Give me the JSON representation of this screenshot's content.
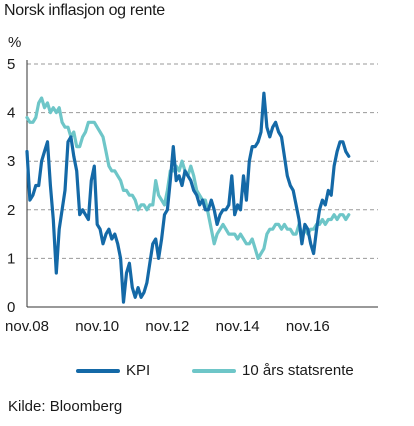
{
  "chart_data": {
    "type": "line",
    "title": "Norsk inflasjon og rente",
    "ylabel": "%",
    "ylim": [
      0,
      5
    ],
    "yticks": [
      "0",
      "1",
      "2",
      "3",
      "4",
      "5"
    ],
    "xlim": [
      "2008-11",
      "2018-11"
    ],
    "xticks": [
      "nov.08",
      "nov.10",
      "nov.12",
      "nov.14",
      "nov.16"
    ],
    "grid": "horizontal dashed",
    "legend_position": "bottom",
    "source": "Kilde: Bloomberg",
    "series": [
      {
        "name": "KPI",
        "color": "#1469A7",
        "points": [
          [
            "2008-11",
            3.2
          ],
          [
            "2008-12",
            2.2
          ],
          [
            "2009-01",
            2.3
          ],
          [
            "2009-02",
            2.5
          ],
          [
            "2009-03",
            2.5
          ],
          [
            "2009-04",
            3.0
          ],
          [
            "2009-05",
            3.2
          ],
          [
            "2009-06",
            3.4
          ],
          [
            "2009-07",
            2.5
          ],
          [
            "2009-08",
            1.8
          ],
          [
            "2009-09",
            0.7
          ],
          [
            "2009-10",
            1.6
          ],
          [
            "2009-11",
            2.0
          ],
          [
            "2009-12",
            2.4
          ],
          [
            "2010-01",
            3.4
          ],
          [
            "2010-02",
            3.5
          ],
          [
            "2010-03",
            3.1
          ],
          [
            "2010-04",
            2.8
          ],
          [
            "2010-05",
            1.9
          ],
          [
            "2010-06",
            2.0
          ],
          [
            "2010-07",
            1.9
          ],
          [
            "2010-08",
            1.8
          ],
          [
            "2010-09",
            2.6
          ],
          [
            "2010-10",
            2.9
          ],
          [
            "2010-11",
            1.7
          ],
          [
            "2010-12",
            1.6
          ],
          [
            "2011-01",
            1.3
          ],
          [
            "2011-02",
            1.5
          ],
          [
            "2011-03",
            1.6
          ],
          [
            "2011-04",
            1.4
          ],
          [
            "2011-05",
            1.5
          ],
          [
            "2011-06",
            1.3
          ],
          [
            "2011-07",
            1.0
          ],
          [
            "2011-08",
            0.1
          ],
          [
            "2011-09",
            0.7
          ],
          [
            "2011-10",
            0.9
          ],
          [
            "2011-11",
            0.4
          ],
          [
            "2011-12",
            0.2
          ],
          [
            "2012-01",
            0.4
          ],
          [
            "2012-02",
            0.2
          ],
          [
            "2012-03",
            0.3
          ],
          [
            "2012-04",
            0.5
          ],
          [
            "2012-05",
            0.9
          ],
          [
            "2012-06",
            1.3
          ],
          [
            "2012-07",
            1.4
          ],
          [
            "2012-08",
            1.0
          ],
          [
            "2012-09",
            1.4
          ],
          [
            "2012-10",
            1.9
          ],
          [
            "2012-11",
            2.0
          ],
          [
            "2012-12",
            2.6
          ],
          [
            "2013-01",
            3.3
          ],
          [
            "2013-02",
            2.6
          ],
          [
            "2013-03",
            2.7
          ],
          [
            "2013-04",
            2.5
          ],
          [
            "2013-05",
            2.8
          ],
          [
            "2013-06",
            2.7
          ],
          [
            "2013-07",
            2.6
          ],
          [
            "2013-08",
            2.4
          ],
          [
            "2013-09",
            2.3
          ],
          [
            "2013-10",
            2.1
          ],
          [
            "2013-11",
            2.2
          ],
          [
            "2013-12",
            2.0
          ],
          [
            "2014-01",
            2.0
          ],
          [
            "2014-02",
            2.2
          ],
          [
            "2014-03",
            2.0
          ],
          [
            "2014-04",
            1.7
          ],
          [
            "2014-05",
            1.9
          ],
          [
            "2014-06",
            2.0
          ],
          [
            "2014-07",
            2.0
          ],
          [
            "2014-08",
            2.1
          ],
          [
            "2014-09",
            2.7
          ],
          [
            "2014-10",
            1.9
          ],
          [
            "2014-11",
            2.1
          ],
          [
            "2014-12",
            2.0
          ],
          [
            "2015-01",
            2.7
          ],
          [
            "2015-02",
            2.2
          ],
          [
            "2015-03",
            3.0
          ],
          [
            "2015-04",
            3.3
          ],
          [
            "2015-05",
            3.3
          ],
          [
            "2015-06",
            3.4
          ],
          [
            "2015-07",
            3.6
          ],
          [
            "2015-08",
            4.4
          ],
          [
            "2015-09",
            3.7
          ],
          [
            "2015-10",
            3.5
          ],
          [
            "2015-11",
            3.7
          ],
          [
            "2015-12",
            3.8
          ],
          [
            "2016-01",
            3.6
          ],
          [
            "2016-02",
            3.5
          ],
          [
            "2016-03",
            3.1
          ],
          [
            "2016-04",
            2.7
          ],
          [
            "2016-05",
            2.5
          ],
          [
            "2016-06",
            2.4
          ],
          [
            "2016-07",
            2.1
          ],
          [
            "2016-08",
            1.8
          ],
          [
            "2016-09",
            1.3
          ],
          [
            "2016-10",
            1.7
          ],
          [
            "2016-11",
            1.6
          ],
          [
            "2016-12",
            1.3
          ],
          [
            "2017-01",
            1.1
          ],
          [
            "2017-02",
            1.6
          ],
          [
            "2017-03",
            2.0
          ],
          [
            "2017-04",
            2.2
          ],
          [
            "2017-05",
            2.1
          ],
          [
            "2017-06",
            2.4
          ],
          [
            "2017-07",
            2.3
          ],
          [
            "2017-08",
            2.9
          ],
          [
            "2017-09",
            3.2
          ],
          [
            "2017-10",
            3.4
          ],
          [
            "2017-11",
            3.4
          ],
          [
            "2017-12",
            3.2
          ],
          [
            "2018-01",
            3.1
          ]
        ]
      },
      {
        "name": "10 års statsrente",
        "color": "#6EC6C8",
        "points": [
          [
            "2008-11",
            3.9
          ],
          [
            "2008-12",
            3.8
          ],
          [
            "2009-01",
            3.8
          ],
          [
            "2009-02",
            3.9
          ],
          [
            "2009-03",
            4.2
          ],
          [
            "2009-04",
            4.3
          ],
          [
            "2009-05",
            4.1
          ],
          [
            "2009-06",
            4.2
          ],
          [
            "2009-07",
            4.0
          ],
          [
            "2009-08",
            4.1
          ],
          [
            "2009-09",
            4.0
          ],
          [
            "2009-10",
            4.1
          ],
          [
            "2009-11",
            3.8
          ],
          [
            "2009-12",
            3.7
          ],
          [
            "2010-01",
            3.7
          ],
          [
            "2010-02",
            3.5
          ],
          [
            "2010-03",
            3.6
          ],
          [
            "2010-04",
            3.3
          ],
          [
            "2010-05",
            3.3
          ],
          [
            "2010-06",
            3.5
          ],
          [
            "2010-07",
            3.6
          ],
          [
            "2010-08",
            3.8
          ],
          [
            "2010-09",
            3.8
          ],
          [
            "2010-10",
            3.8
          ],
          [
            "2010-11",
            3.7
          ],
          [
            "2010-12",
            3.6
          ],
          [
            "2011-01",
            3.5
          ],
          [
            "2011-02",
            3.2
          ],
          [
            "2011-03",
            2.9
          ],
          [
            "2011-04",
            2.8
          ],
          [
            "2011-05",
            2.8
          ],
          [
            "2011-06",
            2.7
          ],
          [
            "2011-07",
            2.6
          ],
          [
            "2011-08",
            2.4
          ],
          [
            "2011-09",
            2.4
          ],
          [
            "2011-10",
            2.3
          ],
          [
            "2011-11",
            2.3
          ],
          [
            "2011-12",
            2.2
          ],
          [
            "2012-01",
            2.0
          ],
          [
            "2012-02",
            2.1
          ],
          [
            "2012-03",
            2.1
          ],
          [
            "2012-04",
            2.0
          ],
          [
            "2012-05",
            2.1
          ],
          [
            "2012-06",
            2.1
          ],
          [
            "2012-07",
            2.6
          ],
          [
            "2012-08",
            2.3
          ],
          [
            "2012-09",
            2.2
          ],
          [
            "2012-10",
            2.1
          ],
          [
            "2012-11",
            2.4
          ],
          [
            "2012-12",
            2.8
          ],
          [
            "2013-01",
            2.8
          ],
          [
            "2013-02",
            2.9
          ],
          [
            "2013-03",
            2.8
          ],
          [
            "2013-04",
            3.0
          ],
          [
            "2013-05",
            2.8
          ],
          [
            "2013-06",
            2.7
          ],
          [
            "2013-07",
            2.9
          ],
          [
            "2013-08",
            2.7
          ],
          [
            "2013-09",
            2.4
          ],
          [
            "2013-10",
            2.3
          ],
          [
            "2013-11",
            2.2
          ],
          [
            "2013-12",
            2.2
          ],
          [
            "2014-01",
            1.9
          ],
          [
            "2014-02",
            1.6
          ],
          [
            "2014-03",
            1.3
          ],
          [
            "2014-04",
            1.5
          ],
          [
            "2014-05",
            1.6
          ],
          [
            "2014-06",
            1.7
          ],
          [
            "2014-07",
            1.6
          ],
          [
            "2014-08",
            1.5
          ],
          [
            "2014-09",
            1.5
          ],
          [
            "2014-10",
            1.5
          ],
          [
            "2014-11",
            1.4
          ],
          [
            "2014-12",
            1.5
          ],
          [
            "2015-01",
            1.4
          ],
          [
            "2015-02",
            1.3
          ],
          [
            "2015-03",
            1.3
          ],
          [
            "2015-04",
            1.4
          ],
          [
            "2015-05",
            1.2
          ],
          [
            "2015-06",
            1.0
          ],
          [
            "2015-07",
            1.1
          ],
          [
            "2015-08",
            1.2
          ],
          [
            "2015-09",
            1.5
          ],
          [
            "2015-10",
            1.6
          ],
          [
            "2015-11",
            1.6
          ],
          [
            "2015-12",
            1.7
          ],
          [
            "2016-01",
            1.7
          ],
          [
            "2016-02",
            1.6
          ],
          [
            "2016-03",
            1.7
          ],
          [
            "2016-04",
            1.6
          ],
          [
            "2016-05",
            1.6
          ],
          [
            "2016-06",
            1.5
          ],
          [
            "2016-07",
            1.5
          ],
          [
            "2016-08",
            1.7
          ],
          [
            "2016-09",
            1.5
          ],
          [
            "2016-10",
            1.6
          ],
          [
            "2016-11",
            1.5
          ],
          [
            "2016-12",
            1.6
          ],
          [
            "2017-01",
            1.6
          ],
          [
            "2017-02",
            1.7
          ],
          [
            "2017-03",
            1.7
          ],
          [
            "2017-04",
            1.8
          ],
          [
            "2017-05",
            1.7
          ],
          [
            "2017-06",
            1.8
          ],
          [
            "2017-07",
            1.8
          ],
          [
            "2017-08",
            1.9
          ],
          [
            "2017-09",
            1.8
          ],
          [
            "2017-10",
            1.9
          ],
          [
            "2017-11",
            1.9
          ],
          [
            "2017-12",
            1.8
          ],
          [
            "2018-01",
            1.9
          ]
        ]
      }
    ]
  }
}
